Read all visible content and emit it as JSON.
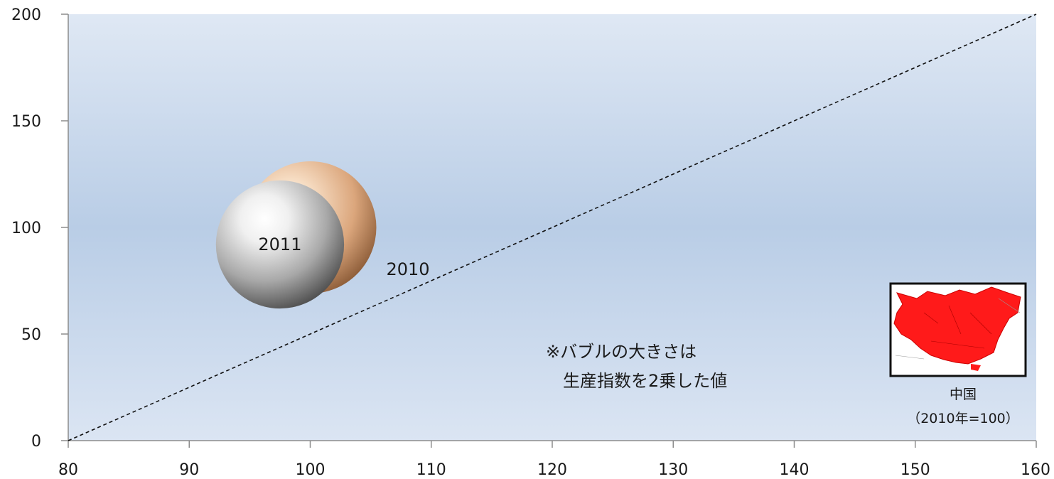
{
  "chart_data": {
    "type": "scatter",
    "subtype": "bubble",
    "xlim": [
      80,
      160
    ],
    "ylim": [
      0,
      200
    ],
    "x_ticks": [
      80,
      90,
      100,
      110,
      120,
      130,
      140,
      150,
      160
    ],
    "y_ticks": [
      0,
      50,
      100,
      150,
      200
    ],
    "grid": false,
    "points": [
      {
        "label": "2010",
        "x": 100,
        "y": 100,
        "size": 10000,
        "color": "#e8b48c"
      },
      {
        "label": "2011",
        "x": 97.5,
        "y": 92,
        "size": 9400,
        "color": "#b8b8b8"
      }
    ],
    "reference_line": {
      "from": [
        80,
        0
      ],
      "to": [
        160,
        200
      ],
      "style": "dashed"
    },
    "note_lines": [
      "※バブルの大きさは",
      "　生産指数を2乗した値"
    ],
    "inset": {
      "icon": "china-map-icon",
      "label_lines": [
        "中国",
        "（2010年=100）"
      ],
      "highlight_color": "#ff0000"
    }
  }
}
